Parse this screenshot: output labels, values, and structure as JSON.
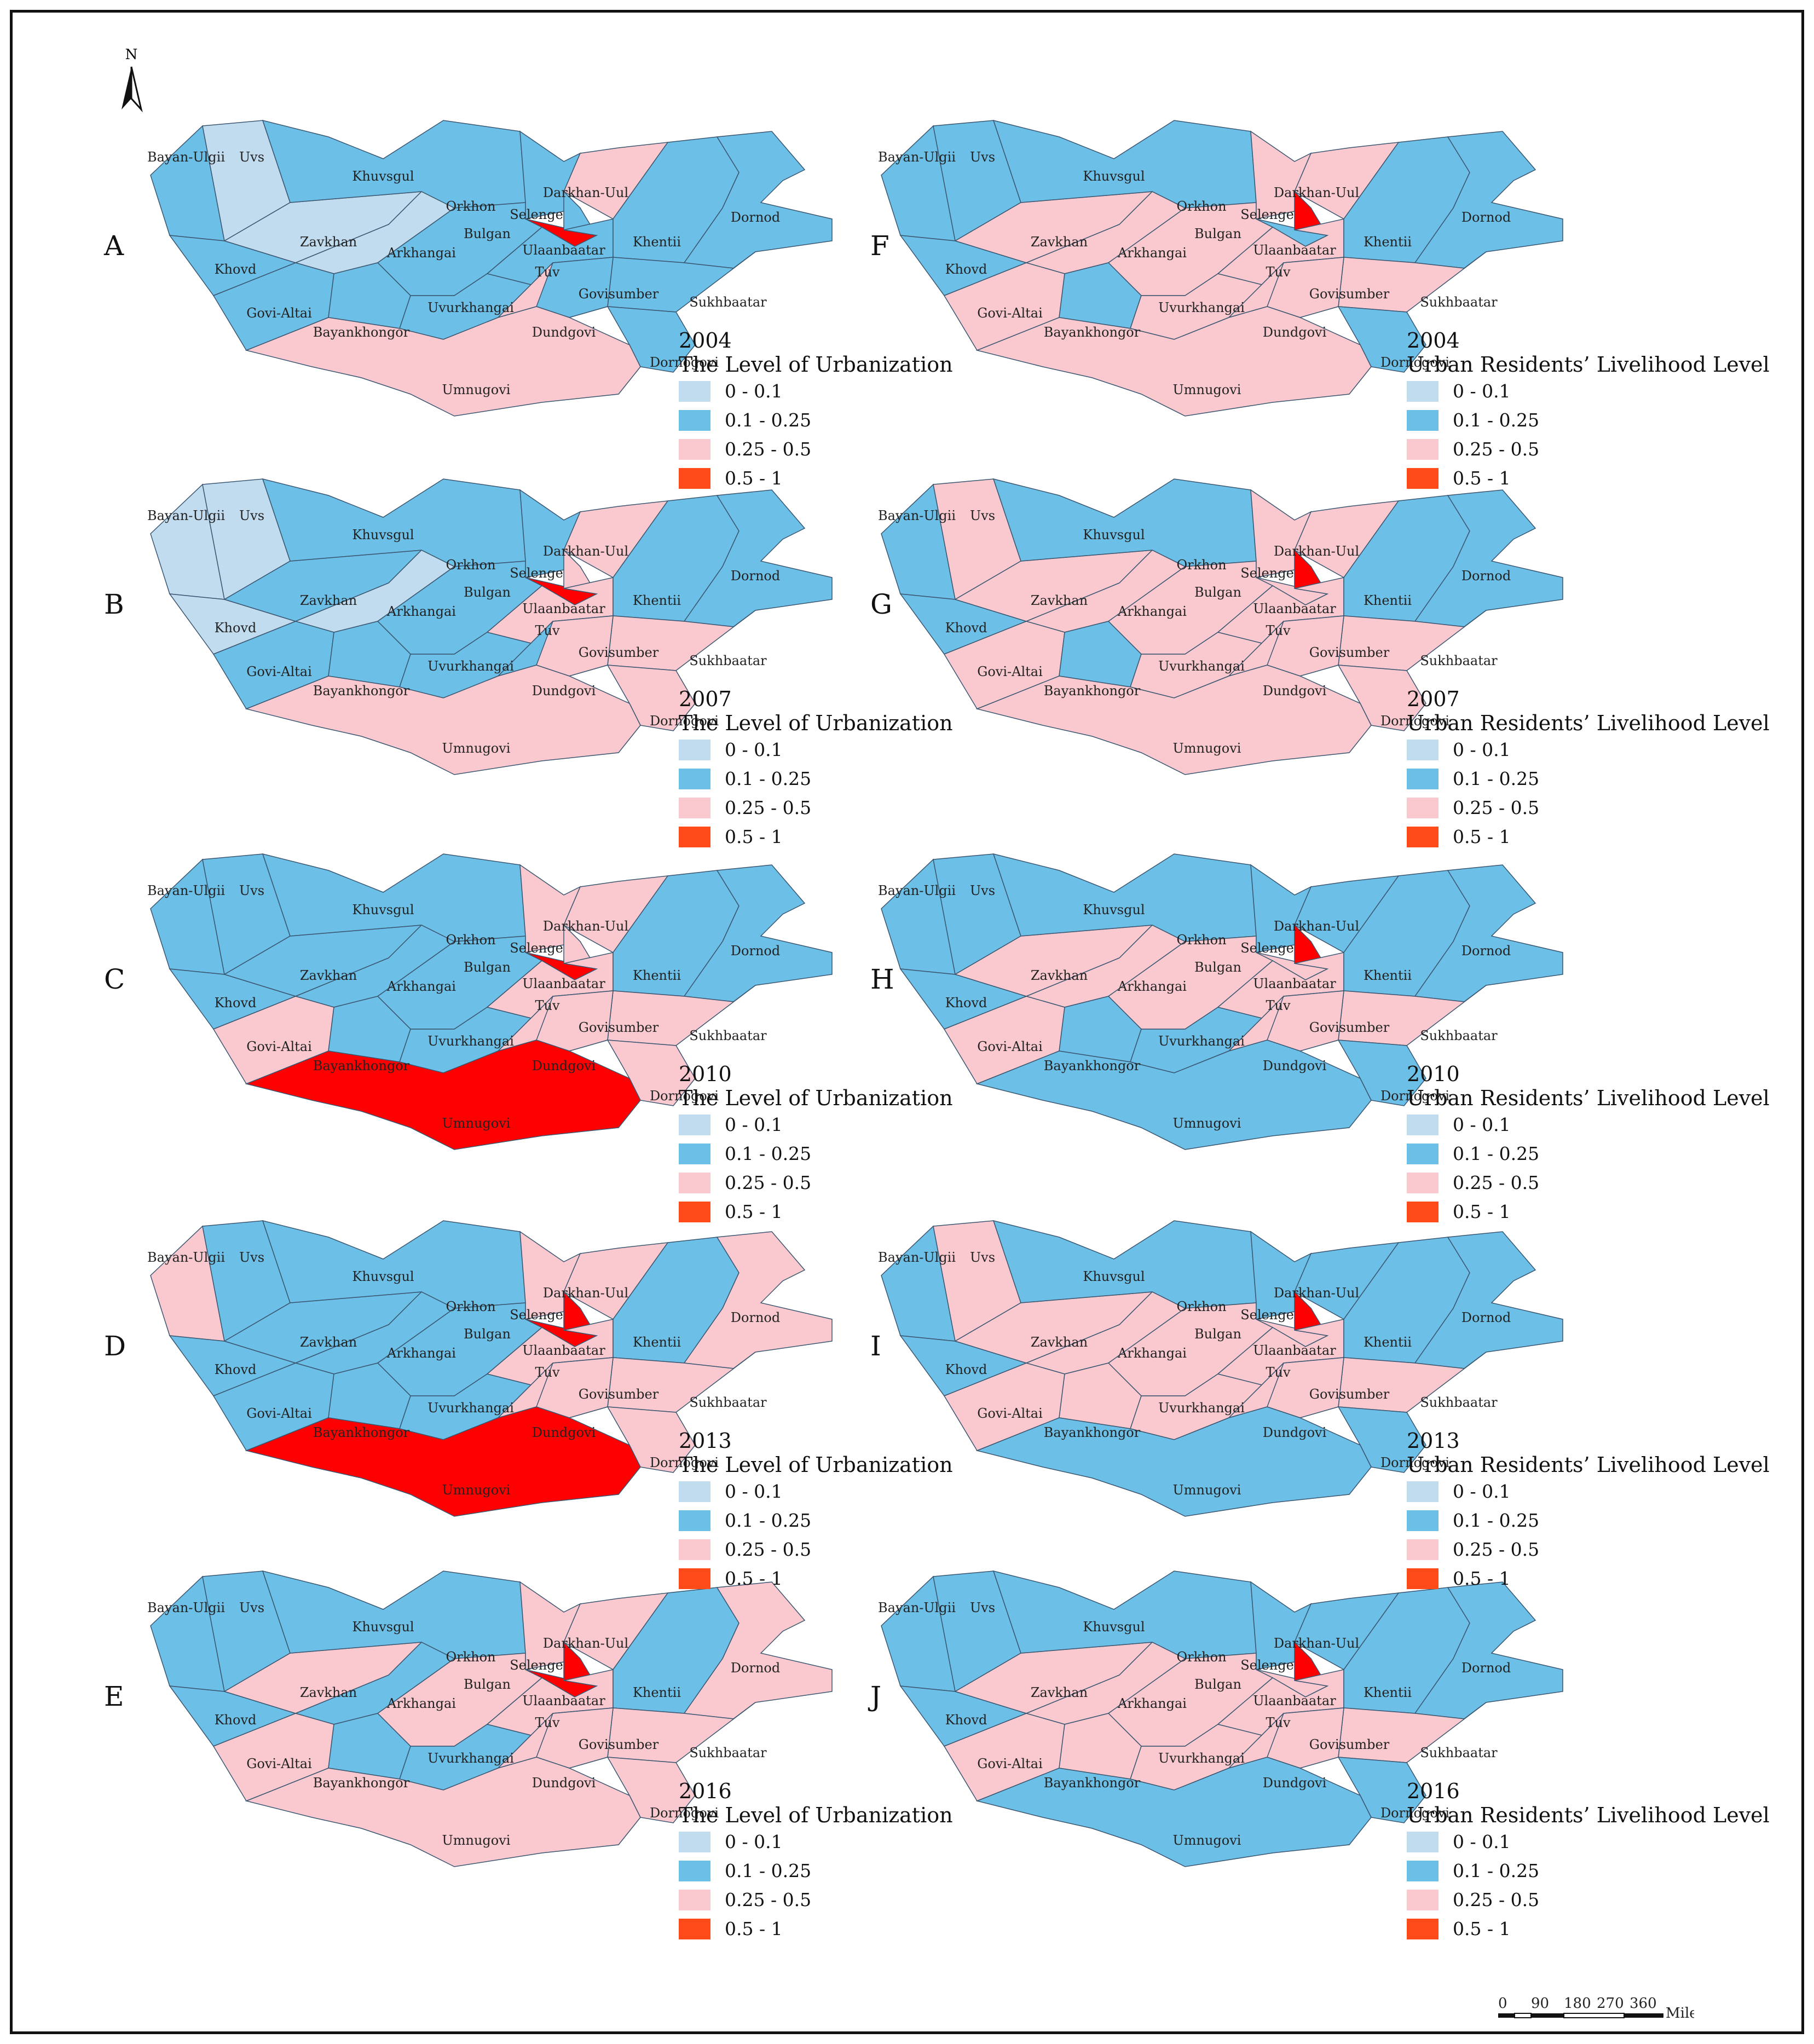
{
  "north_label": "N",
  "colors": {
    "c1": "#c2dcef",
    "c2": "#6cbfe6",
    "c3": "#f9c9cf",
    "c4": "#ff0000",
    "legend_c4": "#ff4a1a",
    "border": "#3a5670"
  },
  "legend_items": [
    "0 - 0.1",
    "0.1 - 0.25",
    "0.25 - 0.5",
    "0.5 - 1"
  ],
  "legend_titles": {
    "urb": "The Level of Urbanization",
    "liv": "Urban Residents’ Livelihood Level"
  },
  "panels": [
    {
      "letter": "A",
      "year": "2004",
      "kind": "urb",
      "classes": {
        "Bayan-Ulgii": 2,
        "Uvs": 1,
        "Khovd": 2,
        "Zavkhan": 1,
        "Khuvsgul": 2,
        "Arkhangai": 1,
        "Bulgan": 2,
        "Orkhon": 4,
        "Selenge": 2,
        "Darkhan-Uul": 3,
        "Ulaanbaatar": 2,
        "Tuv": 2,
        "Khentii": 2,
        "Dornod": 2,
        "Sukhbaatar": 2,
        "Govi-Altai": 2,
        "Bayankhongor": 2,
        "Uvurkhangai": 2,
        "Dundgovi": 3,
        "Govisumber": 2,
        "Dornogovi": 2,
        "Umnugovi": 3
      }
    },
    {
      "letter": "F",
      "year": "2004",
      "kind": "liv",
      "classes": {
        "Bayan-Ulgii": 2,
        "Uvs": 2,
        "Khovd": 2,
        "Zavkhan": 3,
        "Khuvsgul": 2,
        "Arkhangai": 3,
        "Bulgan": 3,
        "Orkhon": 2,
        "Selenge": 3,
        "Darkhan-Uul": 3,
        "Ulaanbaatar": 4,
        "Tuv": 3,
        "Khentii": 2,
        "Dornod": 2,
        "Sukhbaatar": 3,
        "Govi-Altai": 3,
        "Bayankhongor": 2,
        "Uvurkhangai": 3,
        "Dundgovi": 3,
        "Govisumber": 3,
        "Dornogovi": 2,
        "Umnugovi": 3
      }
    },
    {
      "letter": "B",
      "year": "2007",
      "kind": "urb",
      "classes": {
        "Bayan-Ulgii": 1,
        "Uvs": 1,
        "Khovd": 1,
        "Zavkhan": 2,
        "Khuvsgul": 2,
        "Arkhangai": 1,
        "Bulgan": 2,
        "Orkhon": 4,
        "Selenge": 2,
        "Darkhan-Uul": 3,
        "Ulaanbaatar": 3,
        "Tuv": 3,
        "Khentii": 2,
        "Dornod": 2,
        "Sukhbaatar": 3,
        "Govi-Altai": 2,
        "Bayankhongor": 2,
        "Uvurkhangai": 2,
        "Dundgovi": 2,
        "Govisumber": 3,
        "Dornogovi": 3,
        "Umnugovi": 3
      }
    },
    {
      "letter": "G",
      "year": "2007",
      "kind": "liv",
      "classes": {
        "Bayan-Ulgii": 2,
        "Uvs": 3,
        "Khovd": 2,
        "Zavkhan": 3,
        "Khuvsgul": 2,
        "Arkhangai": 3,
        "Bulgan": 3,
        "Orkhon": 3,
        "Selenge": 3,
        "Darkhan-Uul": 3,
        "Ulaanbaatar": 4,
        "Tuv": 3,
        "Khentii": 2,
        "Dornod": 2,
        "Sukhbaatar": 3,
        "Govi-Altai": 3,
        "Bayankhongor": 2,
        "Uvurkhangai": 3,
        "Dundgovi": 3,
        "Govisumber": 3,
        "Dornogovi": 3,
        "Umnugovi": 3
      }
    },
    {
      "letter": "C",
      "year": "2010",
      "kind": "urb",
      "classes": {
        "Bayan-Ulgii": 2,
        "Uvs": 2,
        "Khovd": 2,
        "Zavkhan": 2,
        "Khuvsgul": 2,
        "Arkhangai": 2,
        "Bulgan": 2,
        "Orkhon": 4,
        "Selenge": 3,
        "Darkhan-Uul": 3,
        "Ulaanbaatar": 3,
        "Tuv": 3,
        "Khentii": 2,
        "Dornod": 2,
        "Sukhbaatar": 3,
        "Govi-Altai": 3,
        "Bayankhongor": 2,
        "Uvurkhangai": 2,
        "Dundgovi": 3,
        "Govisumber": 3,
        "Dornogovi": 3,
        "Umnugovi": 4
      }
    },
    {
      "letter": "H",
      "year": "2010",
      "kind": "liv",
      "classes": {
        "Bayan-Ulgii": 2,
        "Uvs": 2,
        "Khovd": 2,
        "Zavkhan": 3,
        "Khuvsgul": 2,
        "Arkhangai": 3,
        "Bulgan": 3,
        "Orkhon": 3,
        "Selenge": 2,
        "Darkhan-Uul": 2,
        "Ulaanbaatar": 4,
        "Tuv": 3,
        "Khentii": 2,
        "Dornod": 2,
        "Sukhbaatar": 3,
        "Govi-Altai": 3,
        "Bayankhongor": 2,
        "Uvurkhangai": 2,
        "Dundgovi": 3,
        "Govisumber": 3,
        "Dornogovi": 2,
        "Umnugovi": 2
      }
    },
    {
      "letter": "D",
      "year": "2013",
      "kind": "urb",
      "classes": {
        "Bayan-Ulgii": 3,
        "Uvs": 2,
        "Khovd": 2,
        "Zavkhan": 2,
        "Khuvsgul": 2,
        "Arkhangai": 2,
        "Bulgan": 2,
        "Orkhon": 4,
        "Selenge": 3,
        "Darkhan-Uul": 3,
        "Ulaanbaatar": 4,
        "Tuv": 3,
        "Khentii": 2,
        "Dornod": 3,
        "Sukhbaatar": 3,
        "Govi-Altai": 2,
        "Bayankhongor": 2,
        "Uvurkhangai": 2,
        "Dundgovi": 3,
        "Govisumber": 3,
        "Dornogovi": 3,
        "Umnugovi": 4
      }
    },
    {
      "letter": "I",
      "year": "2013",
      "kind": "liv",
      "classes": {
        "Bayan-Ulgii": 2,
        "Uvs": 3,
        "Khovd": 2,
        "Zavkhan": 3,
        "Khuvsgul": 2,
        "Arkhangai": 3,
        "Bulgan": 3,
        "Orkhon": 3,
        "Selenge": 2,
        "Darkhan-Uul": 2,
        "Ulaanbaatar": 4,
        "Tuv": 3,
        "Khentii": 2,
        "Dornod": 2,
        "Sukhbaatar": 3,
        "Govi-Altai": 3,
        "Bayankhongor": 3,
        "Uvurkhangai": 3,
        "Dundgovi": 3,
        "Govisumber": 3,
        "Dornogovi": 2,
        "Umnugovi": 2
      }
    },
    {
      "letter": "E",
      "year": "2016",
      "kind": "urb",
      "classes": {
        "Bayan-Ulgii": 2,
        "Uvs": 2,
        "Khovd": 2,
        "Zavkhan": 3,
        "Khuvsgul": 2,
        "Arkhangai": 2,
        "Bulgan": 3,
        "Orkhon": 4,
        "Selenge": 3,
        "Darkhan-Uul": 3,
        "Ulaanbaatar": 4,
        "Tuv": 3,
        "Khentii": 2,
        "Dornod": 3,
        "Sukhbaatar": 3,
        "Govi-Altai": 3,
        "Bayankhongor": 2,
        "Uvurkhangai": 2,
        "Dundgovi": 3,
        "Govisumber": 3,
        "Dornogovi": 3,
        "Umnugovi": 3
      }
    },
    {
      "letter": "J",
      "year": "2016",
      "kind": "liv",
      "classes": {
        "Bayan-Ulgii": 2,
        "Uvs": 2,
        "Khovd": 2,
        "Zavkhan": 3,
        "Khuvsgul": 2,
        "Arkhangai": 3,
        "Bulgan": 3,
        "Orkhon": 3,
        "Selenge": 2,
        "Darkhan-Uul": 2,
        "Ulaanbaatar": 4,
        "Tuv": 3,
        "Khentii": 2,
        "Dornod": 2,
        "Sukhbaatar": 3,
        "Govi-Altai": 3,
        "Bayankhongor": 3,
        "Uvurkhangai": 3,
        "Dundgovi": 3,
        "Govisumber": 3,
        "Dornogovi": 2,
        "Umnugovi": 2
      }
    }
  ],
  "scale": {
    "ticks": [
      "0",
      "90",
      "180",
      "270",
      "360"
    ],
    "unit": "Miles"
  }
}
